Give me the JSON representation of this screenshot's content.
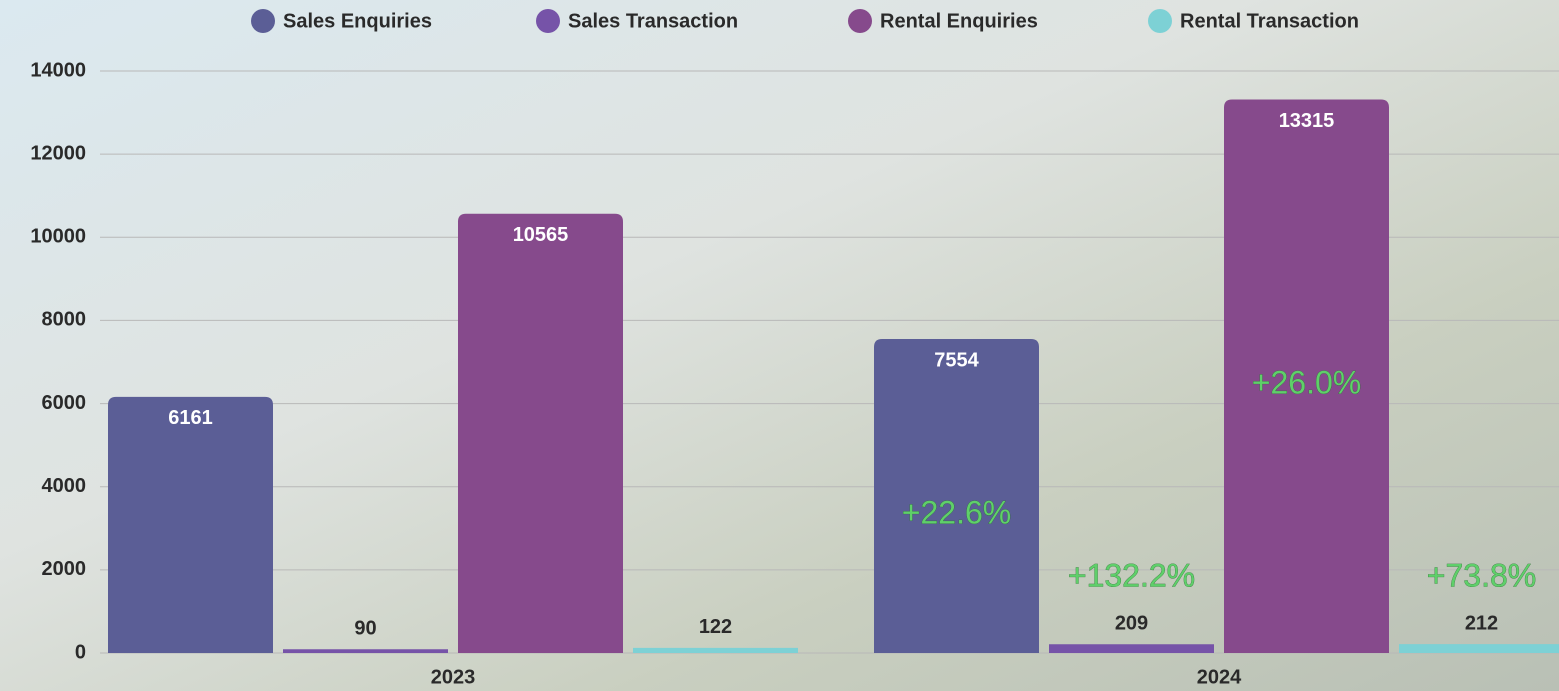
{
  "chart_data": {
    "type": "bar",
    "categories": [
      "2023",
      "2024"
    ],
    "series": [
      {
        "name": "Sales Enquiries",
        "color": "#5b5e96",
        "values": [
          6161,
          7554
        ],
        "change": "+22.6%"
      },
      {
        "name": "Sales Transaction",
        "color": "#7653a8",
        "values": [
          90,
          209
        ],
        "change": "+132.2%"
      },
      {
        "name": "Rental Enquiries",
        "color": "#864a8c",
        "values": [
          10565,
          13315
        ],
        "change": "+26.0%"
      },
      {
        "name": "Rental Transaction",
        "color": "#7dd1d5",
        "values": [
          122,
          212
        ],
        "change": "+73.8%"
      }
    ],
    "ylim": [
      0,
      14000
    ],
    "yticks": [
      0,
      2000,
      4000,
      6000,
      8000,
      10000,
      12000,
      14000
    ],
    "grid": true,
    "legend": "top"
  }
}
